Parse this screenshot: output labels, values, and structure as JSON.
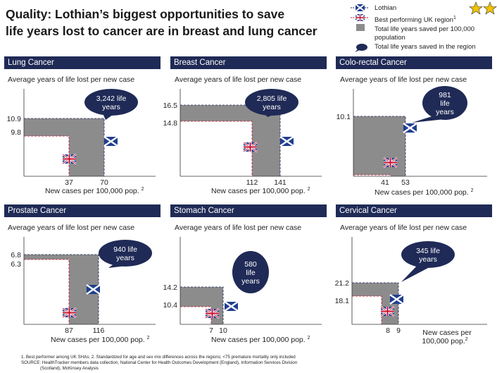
{
  "title": {
    "line1": "Quality: Lothian’s biggest opportunities to save",
    "line2": "life years lost to cancer are in breast and lung cancer"
  },
  "legend": {
    "lothian": "Lothian",
    "uk_best": "Best performing UK region",
    "uk_best_sup": "1",
    "area_line1": "Total life years saved per 100,000",
    "area_line2": "population",
    "callout": "Total life years saved in the region"
  },
  "colors": {
    "header_bg": "#1f2a56",
    "area": "#8c8c8c",
    "callout_fill": "#1f2a56",
    "flag_blue": "#1f3e8f",
    "flag_red": "#c8102e",
    "star": "#f2c200"
  },
  "chart_data": [
    {
      "type": "area",
      "cancer": "Lung Cancer",
      "ylabel": "Average years of life lost per new case",
      "xlabel": "New cases per 100,000 pop.",
      "xlabel_sup": "2",
      "best_uk": {
        "cases": 37,
        "years_lost": 9.8
      },
      "lothian": {
        "cases": 70,
        "years_lost": 10.9
      },
      "y_tick_labels": [
        "10.9",
        "9.8"
      ],
      "x_tick_labels": [
        "37",
        "70"
      ],
      "callout": "3,242 life years"
    },
    {
      "type": "area",
      "cancer": "Breast Cancer",
      "ylabel": "Average years of life lost per new case",
      "xlabel": "New cases per 100,000 pop.",
      "xlabel_sup": "2",
      "best_uk": {
        "cases": 112,
        "years_lost": 14.8
      },
      "lothian": {
        "cases": 141,
        "years_lost": 16.5
      },
      "y_tick_labels": [
        "16.5",
        "14.8"
      ],
      "x_tick_labels": [
        "112",
        "141"
      ],
      "callout": "2,805 life years"
    },
    {
      "type": "area",
      "cancer": "Colo-rectal Cancer",
      "ylabel": "Average years of life lost per new case",
      "xlabel": "New cases per 100,000 pop.",
      "xlabel_sup": "2",
      "best_uk": {
        "cases": 41,
        "years_lost": null
      },
      "lothian": {
        "cases": 53,
        "years_lost": 10.1
      },
      "y_tick_labels": [
        "10.1"
      ],
      "x_tick_labels": [
        "41",
        "53"
      ],
      "callout": "981 life years"
    },
    {
      "type": "area",
      "cancer": "Prostate Cancer",
      "ylabel": "Average years of life lost per new case",
      "xlabel": "New cases per 100,000 pop.",
      "xlabel_sup": "2",
      "best_uk": {
        "cases": 87,
        "years_lost": 6.3
      },
      "lothian": {
        "cases": 116,
        "years_lost": 6.8
      },
      "y_tick_labels": [
        "6.8",
        "6.3"
      ],
      "x_tick_labels": [
        "87",
        "116"
      ],
      "callout": "940 life years"
    },
    {
      "type": "area",
      "cancer": "Stomach Cancer",
      "ylabel": "Average years of life lost per new case",
      "xlabel": "New cases per 100,000 pop.",
      "xlabel_sup": "2",
      "best_uk": {
        "cases": 7,
        "years_lost": 10.4
      },
      "lothian": {
        "cases": 10,
        "years_lost": 14.2
      },
      "y_tick_labels": [
        "14.2",
        "10.4"
      ],
      "x_tick_labels": [
        "7",
        "10"
      ],
      "callout": "580 life years"
    },
    {
      "type": "area",
      "cancer": "Cervical Cancer",
      "ylabel": "Average years of life lost per new case",
      "xlabel": "New cases per 100,000 pop.",
      "xlabel_sup": "2",
      "best_uk": {
        "cases": 8,
        "years_lost": 18.1
      },
      "lothian": {
        "cases": 9,
        "years_lost": 21.2
      },
      "y_tick_labels": [
        "21.2",
        "18.1"
      ],
      "x_tick_labels": [
        "8",
        "9"
      ],
      "callout": "345 life years"
    }
  ],
  "footnotes": {
    "line1": "1. Best performer among UK SHAs;  2.  Standardized for age and sex mix differences across the regions; <75 premature mortality only included",
    "line2": "SOURCE: HealthTracker members data collection, National Center for Health Outcomes Development (England), Information Services Division",
    "line3": "(Scotland), McKinsey Analysis"
  }
}
